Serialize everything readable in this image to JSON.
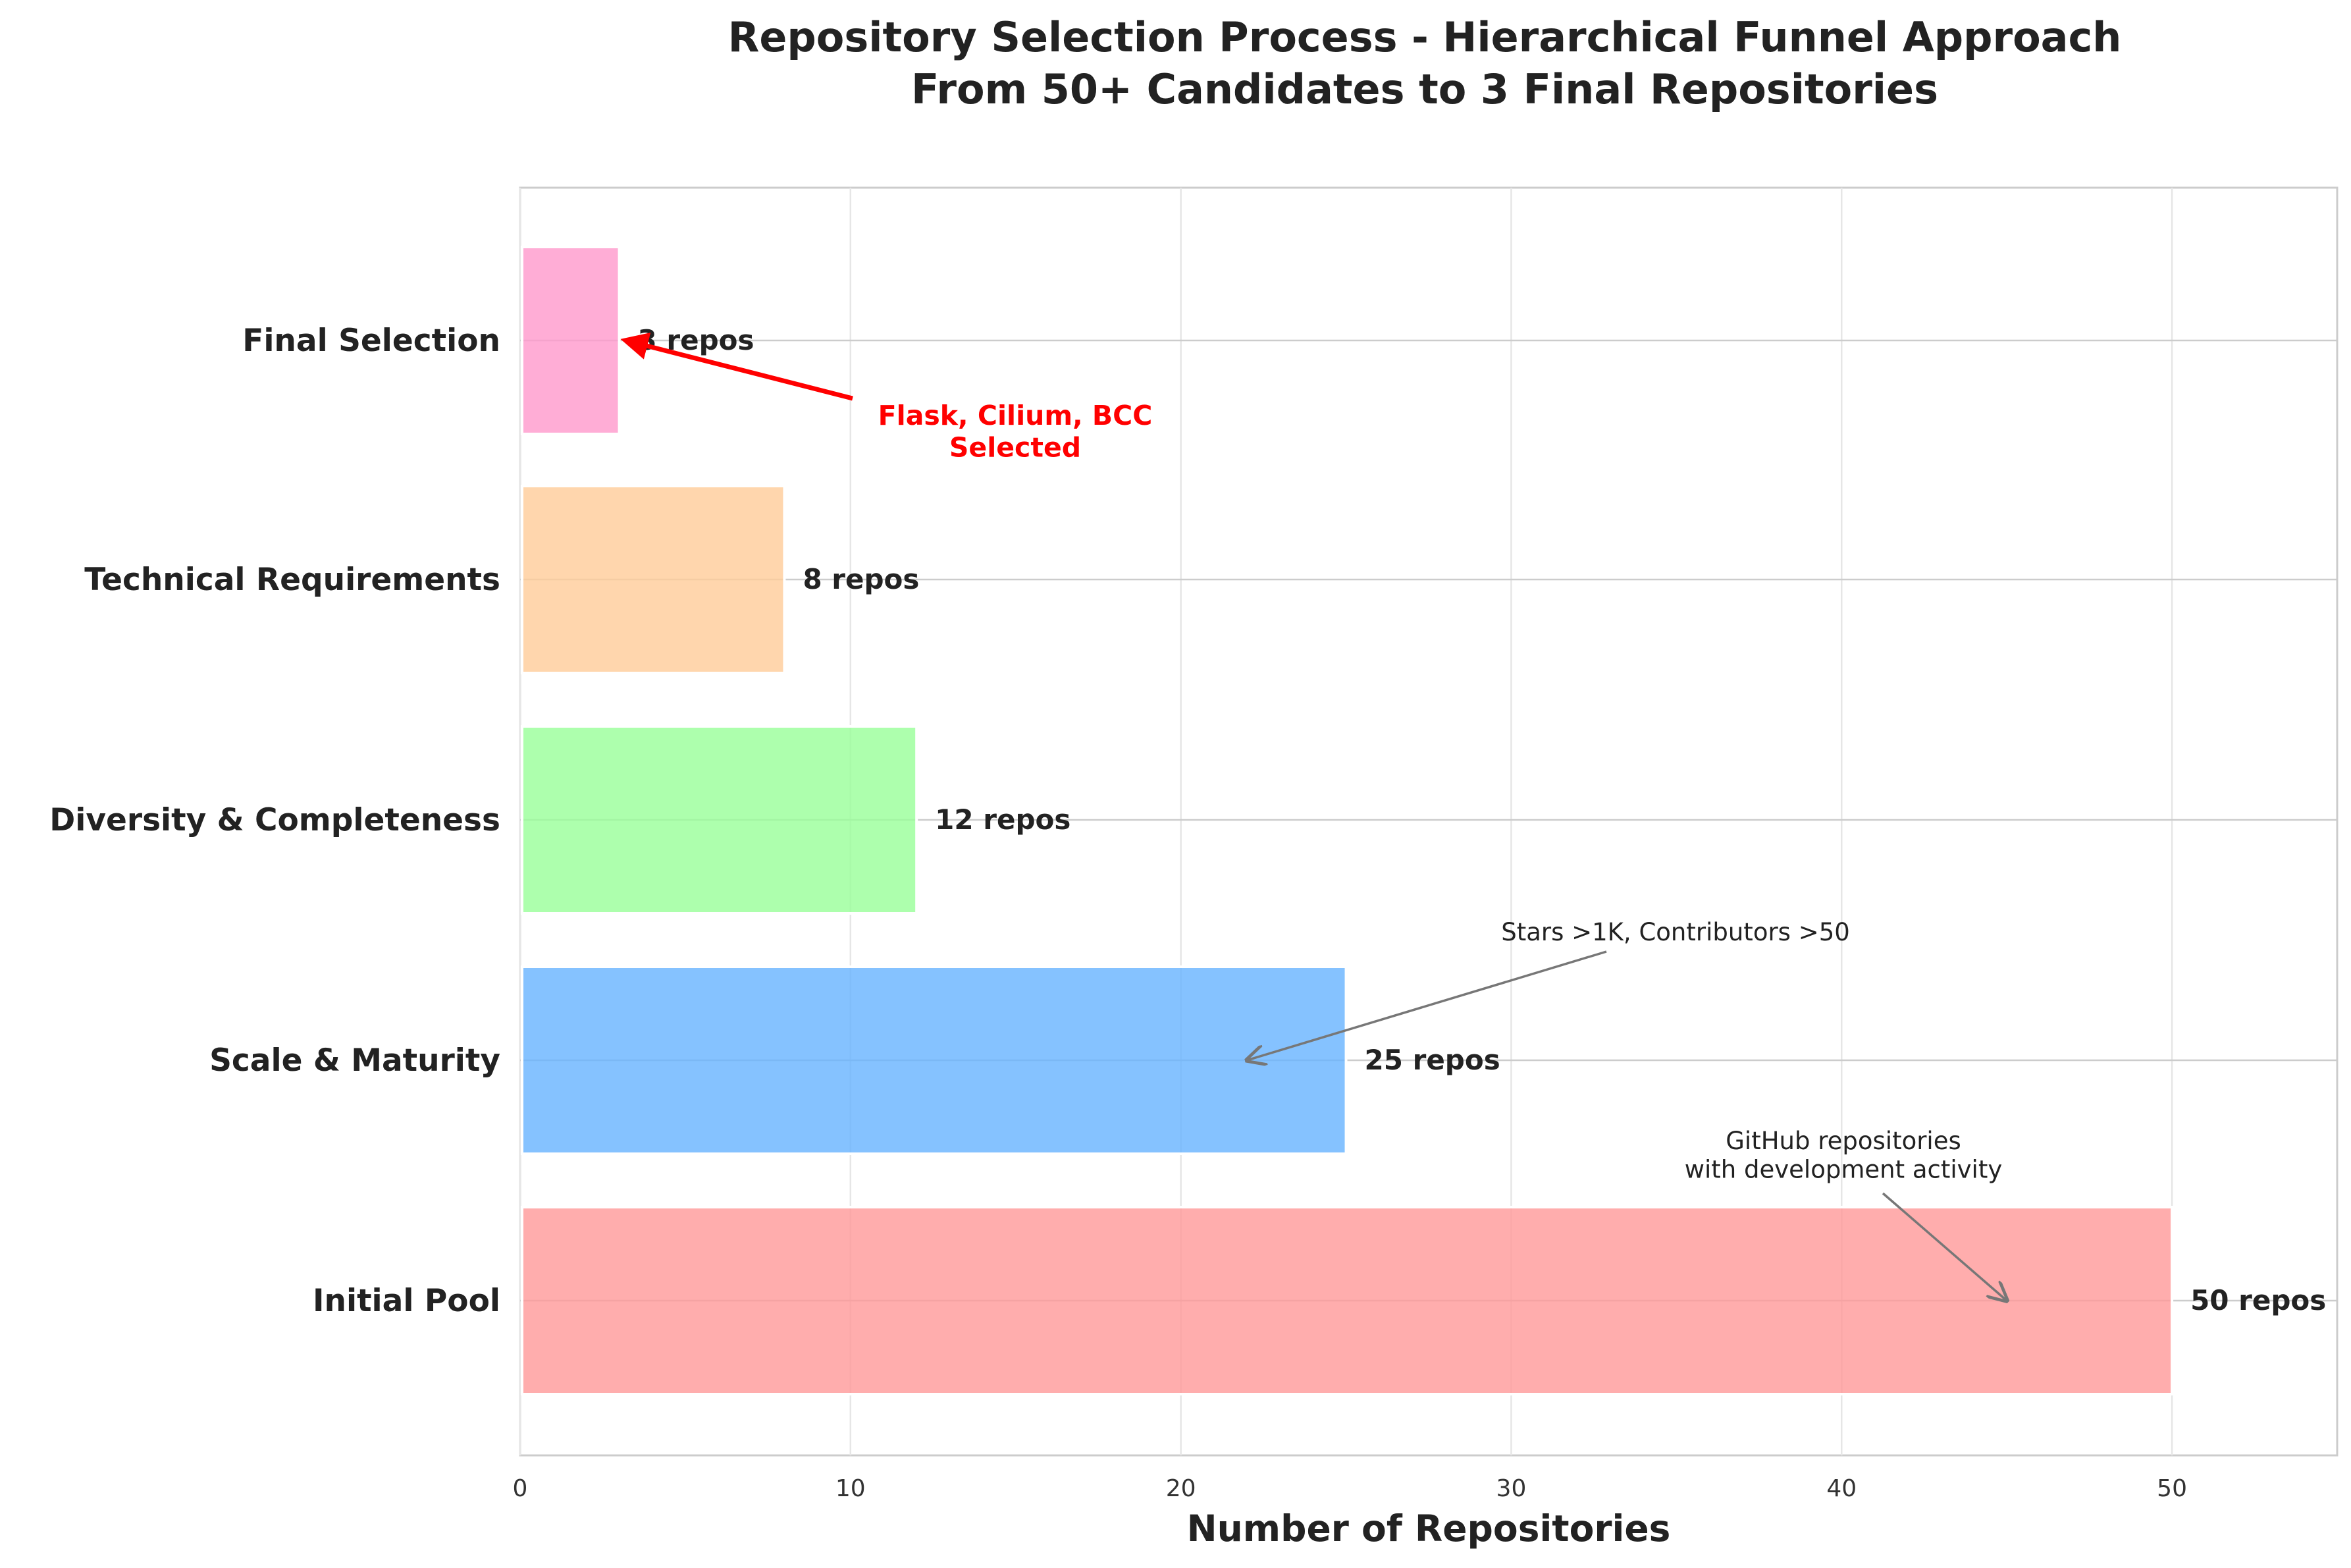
{
  "chart_data": {
    "type": "bar",
    "orientation": "horizontal",
    "title_line1": "Repository Selection Process - Hierarchical Funnel Approach",
    "title_line2": "From 50+ Candidates to 3 Final Repositories",
    "xlabel": "Number of Repositories",
    "ylabel": "",
    "xlim": [
      0,
      55
    ],
    "xticks": [
      0,
      10,
      20,
      30,
      40,
      50
    ],
    "grid": true,
    "categories": [
      "Initial Pool",
      "Scale & Maturity",
      "Diversity & Completeness",
      "Technical Requirements",
      "Final Selection"
    ],
    "values": [
      50,
      25,
      12,
      8,
      3
    ],
    "value_labels": [
      "50 repos",
      "25 repos",
      "12 repos",
      "8 repos",
      "3 repos"
    ],
    "colors": [
      "#ff9999",
      "#66b3ff",
      "#99ff99",
      "#ffcc99",
      "#ff99cc"
    ],
    "annotations": [
      {
        "lines": [
          "GitHub repositories",
          "with development activity"
        ],
        "x": 45,
        "y": 0,
        "color": "#555555",
        "bold": false
      },
      {
        "lines": [
          "Stars >1K, Contributors >50"
        ],
        "x": 22,
        "y": 1,
        "color": "#555555",
        "bold": false
      },
      {
        "lines": [
          "Flask, Cilium, BCC",
          "Selected"
        ],
        "x": 3.2,
        "y": 4,
        "color": "#ff0000",
        "bold": true
      }
    ]
  }
}
